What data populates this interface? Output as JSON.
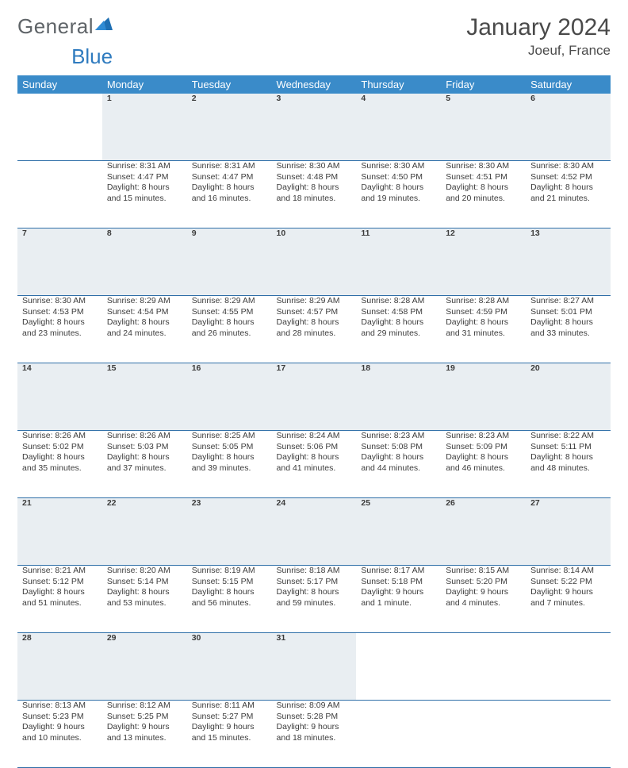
{
  "brand": {
    "part1": "General",
    "part2": "Blue"
  },
  "title": "January 2024",
  "location": "Joeuf, France",
  "colors": {
    "header_bg": "#3a8bc9",
    "header_text": "#ffffff",
    "daynum_bg": "#e9eef2",
    "row_divider": "#2f6fa8",
    "body_text": "#3c3c3c",
    "brand_gray": "#5f6468",
    "brand_blue": "#2f7bbf"
  },
  "weekdays": [
    "Sunday",
    "Monday",
    "Tuesday",
    "Wednesday",
    "Thursday",
    "Friday",
    "Saturday"
  ],
  "weeks": [
    {
      "nums": [
        "",
        "1",
        "2",
        "3",
        "4",
        "5",
        "6"
      ],
      "cells": [
        null,
        {
          "sunrise": "Sunrise: 8:31 AM",
          "sunset": "Sunset: 4:47 PM",
          "day1": "Daylight: 8 hours",
          "day2": "and 15 minutes."
        },
        {
          "sunrise": "Sunrise: 8:31 AM",
          "sunset": "Sunset: 4:47 PM",
          "day1": "Daylight: 8 hours",
          "day2": "and 16 minutes."
        },
        {
          "sunrise": "Sunrise: 8:30 AM",
          "sunset": "Sunset: 4:48 PM",
          "day1": "Daylight: 8 hours",
          "day2": "and 18 minutes."
        },
        {
          "sunrise": "Sunrise: 8:30 AM",
          "sunset": "Sunset: 4:50 PM",
          "day1": "Daylight: 8 hours",
          "day2": "and 19 minutes."
        },
        {
          "sunrise": "Sunrise: 8:30 AM",
          "sunset": "Sunset: 4:51 PM",
          "day1": "Daylight: 8 hours",
          "day2": "and 20 minutes."
        },
        {
          "sunrise": "Sunrise: 8:30 AM",
          "sunset": "Sunset: 4:52 PM",
          "day1": "Daylight: 8 hours",
          "day2": "and 21 minutes."
        }
      ]
    },
    {
      "nums": [
        "7",
        "8",
        "9",
        "10",
        "11",
        "12",
        "13"
      ],
      "cells": [
        {
          "sunrise": "Sunrise: 8:30 AM",
          "sunset": "Sunset: 4:53 PM",
          "day1": "Daylight: 8 hours",
          "day2": "and 23 minutes."
        },
        {
          "sunrise": "Sunrise: 8:29 AM",
          "sunset": "Sunset: 4:54 PM",
          "day1": "Daylight: 8 hours",
          "day2": "and 24 minutes."
        },
        {
          "sunrise": "Sunrise: 8:29 AM",
          "sunset": "Sunset: 4:55 PM",
          "day1": "Daylight: 8 hours",
          "day2": "and 26 minutes."
        },
        {
          "sunrise": "Sunrise: 8:29 AM",
          "sunset": "Sunset: 4:57 PM",
          "day1": "Daylight: 8 hours",
          "day2": "and 28 minutes."
        },
        {
          "sunrise": "Sunrise: 8:28 AM",
          "sunset": "Sunset: 4:58 PM",
          "day1": "Daylight: 8 hours",
          "day2": "and 29 minutes."
        },
        {
          "sunrise": "Sunrise: 8:28 AM",
          "sunset": "Sunset: 4:59 PM",
          "day1": "Daylight: 8 hours",
          "day2": "and 31 minutes."
        },
        {
          "sunrise": "Sunrise: 8:27 AM",
          "sunset": "Sunset: 5:01 PM",
          "day1": "Daylight: 8 hours",
          "day2": "and 33 minutes."
        }
      ]
    },
    {
      "nums": [
        "14",
        "15",
        "16",
        "17",
        "18",
        "19",
        "20"
      ],
      "cells": [
        {
          "sunrise": "Sunrise: 8:26 AM",
          "sunset": "Sunset: 5:02 PM",
          "day1": "Daylight: 8 hours",
          "day2": "and 35 minutes."
        },
        {
          "sunrise": "Sunrise: 8:26 AM",
          "sunset": "Sunset: 5:03 PM",
          "day1": "Daylight: 8 hours",
          "day2": "and 37 minutes."
        },
        {
          "sunrise": "Sunrise: 8:25 AM",
          "sunset": "Sunset: 5:05 PM",
          "day1": "Daylight: 8 hours",
          "day2": "and 39 minutes."
        },
        {
          "sunrise": "Sunrise: 8:24 AM",
          "sunset": "Sunset: 5:06 PM",
          "day1": "Daylight: 8 hours",
          "day2": "and 41 minutes."
        },
        {
          "sunrise": "Sunrise: 8:23 AM",
          "sunset": "Sunset: 5:08 PM",
          "day1": "Daylight: 8 hours",
          "day2": "and 44 minutes."
        },
        {
          "sunrise": "Sunrise: 8:23 AM",
          "sunset": "Sunset: 5:09 PM",
          "day1": "Daylight: 8 hours",
          "day2": "and 46 minutes."
        },
        {
          "sunrise": "Sunrise: 8:22 AM",
          "sunset": "Sunset: 5:11 PM",
          "day1": "Daylight: 8 hours",
          "day2": "and 48 minutes."
        }
      ]
    },
    {
      "nums": [
        "21",
        "22",
        "23",
        "24",
        "25",
        "26",
        "27"
      ],
      "cells": [
        {
          "sunrise": "Sunrise: 8:21 AM",
          "sunset": "Sunset: 5:12 PM",
          "day1": "Daylight: 8 hours",
          "day2": "and 51 minutes."
        },
        {
          "sunrise": "Sunrise: 8:20 AM",
          "sunset": "Sunset: 5:14 PM",
          "day1": "Daylight: 8 hours",
          "day2": "and 53 minutes."
        },
        {
          "sunrise": "Sunrise: 8:19 AM",
          "sunset": "Sunset: 5:15 PM",
          "day1": "Daylight: 8 hours",
          "day2": "and 56 minutes."
        },
        {
          "sunrise": "Sunrise: 8:18 AM",
          "sunset": "Sunset: 5:17 PM",
          "day1": "Daylight: 8 hours",
          "day2": "and 59 minutes."
        },
        {
          "sunrise": "Sunrise: 8:17 AM",
          "sunset": "Sunset: 5:18 PM",
          "day1": "Daylight: 9 hours",
          "day2": "and 1 minute."
        },
        {
          "sunrise": "Sunrise: 8:15 AM",
          "sunset": "Sunset: 5:20 PM",
          "day1": "Daylight: 9 hours",
          "day2": "and 4 minutes."
        },
        {
          "sunrise": "Sunrise: 8:14 AM",
          "sunset": "Sunset: 5:22 PM",
          "day1": "Daylight: 9 hours",
          "day2": "and 7 minutes."
        }
      ]
    },
    {
      "nums": [
        "28",
        "29",
        "30",
        "31",
        "",
        "",
        ""
      ],
      "cells": [
        {
          "sunrise": "Sunrise: 8:13 AM",
          "sunset": "Sunset: 5:23 PM",
          "day1": "Daylight: 9 hours",
          "day2": "and 10 minutes."
        },
        {
          "sunrise": "Sunrise: 8:12 AM",
          "sunset": "Sunset: 5:25 PM",
          "day1": "Daylight: 9 hours",
          "day2": "and 13 minutes."
        },
        {
          "sunrise": "Sunrise: 8:11 AM",
          "sunset": "Sunset: 5:27 PM",
          "day1": "Daylight: 9 hours",
          "day2": "and 15 minutes."
        },
        {
          "sunrise": "Sunrise: 8:09 AM",
          "sunset": "Sunset: 5:28 PM",
          "day1": "Daylight: 9 hours",
          "day2": "and 18 minutes."
        },
        null,
        null,
        null
      ]
    }
  ]
}
